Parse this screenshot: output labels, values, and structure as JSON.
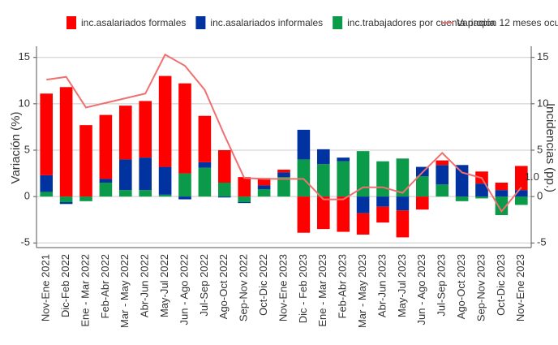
{
  "chart_data": {
    "type": "bar",
    "stacked": true,
    "categories": [
      "Nov-Ene 2021",
      "Dic-Feb 2022",
      "Ene - Mar 2022",
      "Feb-Abr 2022",
      "Mar - May 2022",
      "Abr-Jun 2022",
      "May-Jul 2022",
      "Jun - Ago 2022",
      "Jul-Sep 2022",
      "Ago-Oct 2022",
      "Sep-Nov 2022",
      "Oct-Dic 2022",
      "Nov-Ene 2023",
      "Dic - Feb 2023",
      "Ene - Mar 2023",
      "Feb-Abr 2023",
      "Mar - May 2023",
      "Abr-Jun 2023",
      "May-Jul 2023",
      "Jun - Ago 2023",
      "Jul-Sep 2023",
      "Ago-Oct 2023",
      "Sep-Nov 2023",
      "Oct-Dic 2023",
      "Nov-Ene 2023"
    ],
    "series": [
      {
        "name": "inc.asalariados formales",
        "color": "#ff0000",
        "values": [
          8.8,
          11.8,
          7.7,
          6.9,
          5.8,
          6.1,
          9.8,
          9.7,
          5.0,
          3.5,
          2.1,
          0.8,
          0.3,
          -3.9,
          -3.5,
          -3.8,
          -2.3,
          -1.7,
          -2.9,
          -1.4,
          0.5,
          0,
          1.3,
          0.8,
          2.6
        ]
      },
      {
        "name": "inc.asalariados informales",
        "color": "#0033a0",
        "values": [
          1.8,
          -0.2,
          0,
          0.4,
          3.3,
          3.5,
          3.0,
          -0.3,
          0.6,
          -0.1,
          -0.1,
          0.4,
          0.5,
          3.2,
          1.6,
          0.4,
          -1.8,
          -1.1,
          -1.5,
          1.0,
          2.1,
          3.4,
          1.4,
          0.7,
          0.7
        ]
      },
      {
        "name": "inc.trabajadores por cuenta propia",
        "color": "#0a9a4a",
        "values": [
          0.5,
          -0.6,
          -0.5,
          1.5,
          0.7,
          0.7,
          0.2,
          2.5,
          3.1,
          1.5,
          -0.6,
          0.8,
          2.1,
          4.0,
          3.5,
          3.8,
          4.9,
          3.8,
          4.1,
          2.2,
          1.3,
          -0.5,
          -0.2,
          -2.0,
          -0.9
        ]
      },
      {
        "name": "Variación 12 meses ocupados",
        "color": "#f07070",
        "type": "line",
        "axis": "y2",
        "values": [
          12.6,
          12.9,
          9.6,
          10.1,
          10.6,
          11.1,
          15.3,
          14.1,
          11.5,
          6.6,
          2.0,
          1.9,
          1.9,
          1.9,
          -0.3,
          -0.3,
          1.0,
          1.0,
          0.4,
          2.6,
          4.7,
          2.6,
          2.0,
          -1.6,
          1.0
        ]
      }
    ],
    "ylabel": "Variación (%)",
    "y2label": "Incidencias (pp.)",
    "annotation": "1.0",
    "ylim": [
      -5.5,
      16.2
    ],
    "yticks": [
      -5,
      0,
      5,
      10,
      15
    ],
    "y2lim": [
      -5.5,
      16.2
    ],
    "y2ticks": [
      -5,
      0,
      5,
      10,
      15
    ],
    "grid": true
  }
}
